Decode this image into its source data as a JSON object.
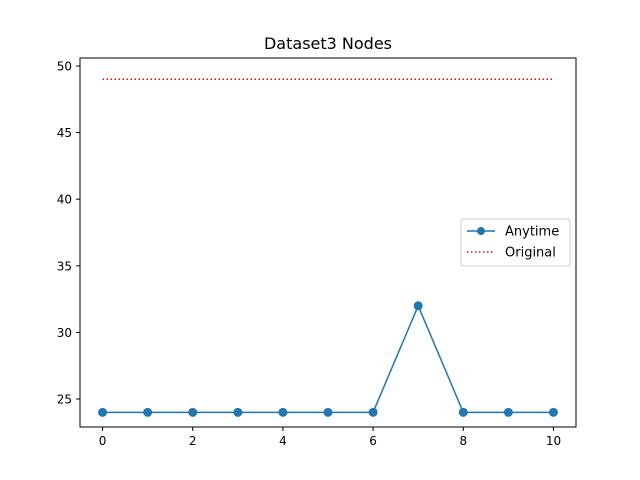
{
  "chart_data": {
    "type": "line",
    "title": "Dataset3 Nodes",
    "xlabel": "",
    "ylabel": "",
    "xlim": [
      -0.5,
      10.5
    ],
    "ylim": [
      22.9,
      50.6
    ],
    "xticks": [
      0,
      2,
      4,
      6,
      8,
      10
    ],
    "yticks": [
      25,
      30,
      35,
      40,
      45,
      50
    ],
    "grid": false,
    "legend_position": "center-right",
    "series": [
      {
        "name": "Anytime",
        "color": "#1f77b4",
        "style": "solid-marker",
        "x": [
          0,
          1,
          2,
          3,
          4,
          5,
          6,
          7,
          8,
          9,
          10
        ],
        "y": [
          24,
          24,
          24,
          24,
          24,
          24,
          24,
          32,
          24,
          24,
          24
        ]
      },
      {
        "name": "Original",
        "color": "#ff0000",
        "style": "dotted",
        "x": [
          0,
          1,
          2,
          3,
          4,
          5,
          6,
          7,
          8,
          9,
          10
        ],
        "y": [
          49,
          49,
          49,
          49,
          49,
          49,
          49,
          49,
          49,
          49,
          49
        ]
      }
    ]
  }
}
